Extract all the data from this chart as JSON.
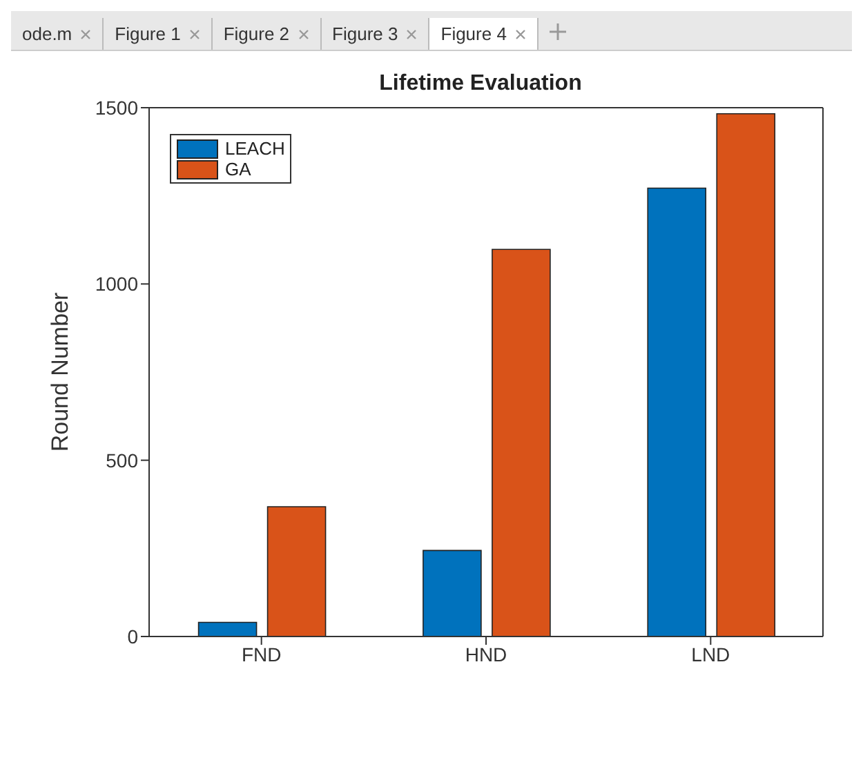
{
  "chart_data": {
    "type": "bar",
    "title": "Lifetime Evaluation",
    "ylabel": "Round Number",
    "categories": [
      "FND",
      "HND",
      "LND"
    ],
    "series": [
      {
        "name": "LEACH",
        "color": "#0072bd",
        "values": [
          40,
          244,
          1272
        ]
      },
      {
        "name": "GA",
        "color": "#d95319",
        "values": [
          368,
          1098,
          1483
        ]
      }
    ],
    "ylim": [
      0,
      1500
    ],
    "yticks": [
      0,
      500,
      1000,
      1500
    ],
    "legend": "top left",
    "annotations": [
      "ode.m",
      "Figure 1",
      "Figure 2",
      "Figure 3",
      "Figure 4"
    ]
  }
}
